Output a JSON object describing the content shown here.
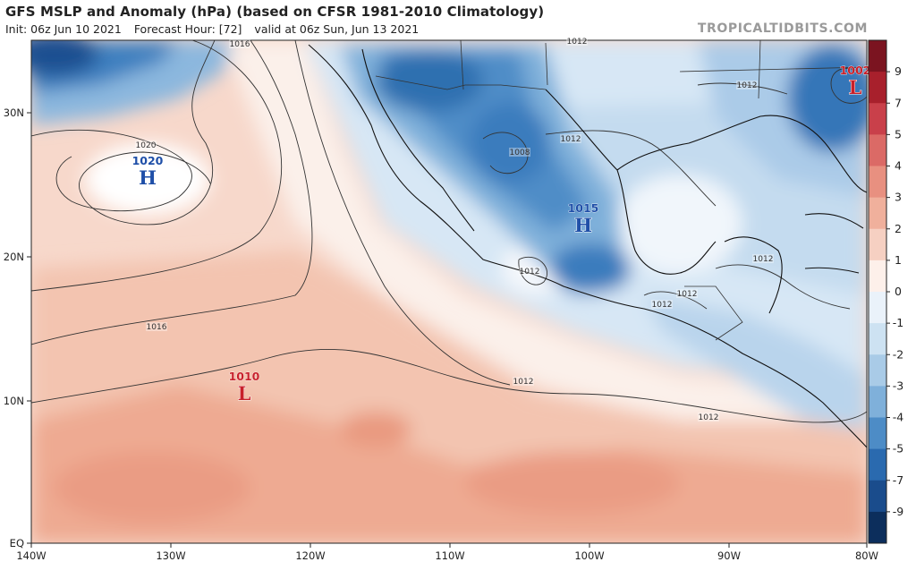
{
  "header": {
    "title": "GFS MSLP and Anomaly (hPa) (based on CFSR 1981-2010 Climatology)",
    "init": "Init: 06z Jun 10 2021",
    "forecast_hour": "Forecast Hour: [72]",
    "valid": "valid at 06z Sun, Jun 13 2021",
    "watermark": "TROPICALTIDBITS.COM"
  },
  "map": {
    "lon_range": [
      -140,
      -80
    ],
    "lat_range": [
      0,
      35
    ],
    "lon_ticks": [
      "140W",
      "130W",
      "120W",
      "110W",
      "100W",
      "90W",
      "80W"
    ],
    "lat_ticks": [
      "EQ",
      "10N",
      "20N",
      "30N"
    ],
    "isobar_labels": [
      "1016",
      "1020",
      "1016",
      "1012",
      "1008",
      "1012",
      "1012",
      "1012",
      "1012",
      "1012",
      "1012",
      "1012",
      "1012"
    ],
    "pressure_systems": [
      {
        "type": "H",
        "value": "1020",
        "color": "#1f4fa8"
      },
      {
        "type": "H",
        "value": "1015",
        "color": "#1f4fa8"
      },
      {
        "type": "L",
        "value": "1010",
        "color": "#c8202a"
      },
      {
        "type": "L",
        "value": "1002",
        "color": "#c8202a"
      }
    ]
  },
  "colorbar": {
    "labels": [
      "9",
      "7",
      "5",
      "4",
      "3",
      "2",
      "1",
      "0",
      "-1",
      "-2",
      "-3",
      "-4",
      "-5",
      "-7",
      "-9"
    ],
    "colors": [
      "#7b1420",
      "#a8202c",
      "#c9404a",
      "#db6a66",
      "#e89080",
      "#f0b09c",
      "#f6d0c2",
      "#fdf0ea",
      "#eaf2fa",
      "#cde2f2",
      "#a9cbe7",
      "#7fb0da",
      "#4d8cc6",
      "#2a6aaf",
      "#1a4c8c",
      "#0c2e5c"
    ]
  },
  "colors": {
    "ocean_warm": "#f6d2c2",
    "ocean_cool": "#dcebf7",
    "deep_blue": "#1d5c9e",
    "low_red": "#c8202a",
    "high_blue": "#1f4fa8"
  }
}
